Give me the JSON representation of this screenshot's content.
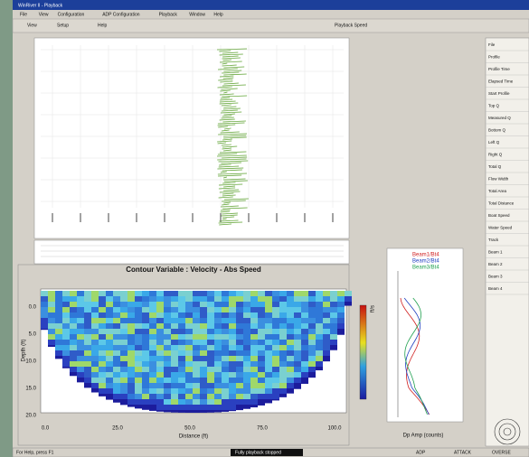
{
  "window": {
    "title": "WinRiver II - Playback",
    "menu": [
      "File",
      "View",
      "Configuration",
      "ADP Configuration",
      "Playback",
      "Window",
      "Help"
    ],
    "toolbar": [
      "View",
      "Setup",
      "Help"
    ],
    "search": "Playback Speed"
  },
  "contour": {
    "title": "Contour Variable : Velocity - Abs Speed",
    "x_label": "Distance (ft)",
    "y_label": "Depth (ft)",
    "x_ticks": [
      "0.0",
      "25.0",
      "50.0",
      "75.0",
      "100.0"
    ],
    "y_ticks": [
      "0.0",
      "5.0",
      "10.0",
      "15.0",
      "20.0"
    ],
    "colorbar_label": "ft/s"
  },
  "profile": {
    "legend": [
      "Beam1/Bt4",
      "Beam2/Bt4",
      "Beam3/Bt4"
    ],
    "x_label": "Dp Amp (counts)"
  },
  "side_panel": {
    "rows": [
      "File",
      "Profile",
      "Profile Time",
      "Elapsed Time",
      "Start Profile",
      "Top Q",
      "Measured Q",
      "Bottom Q",
      "Left Q",
      "Right Q",
      "Total Q",
      "Flow Width",
      "Total Area",
      "Total Distance",
      "Boat Speed",
      "Water Speed",
      "Track",
      "Beam 1",
      "Beam 2",
      "Beam 3",
      "Beam 4"
    ]
  },
  "status": {
    "help": "For Help, press F1",
    "message": "Fully playback stopped",
    "indicators": [
      "ADP",
      "ATTACK",
      "OVERSE"
    ]
  }
}
